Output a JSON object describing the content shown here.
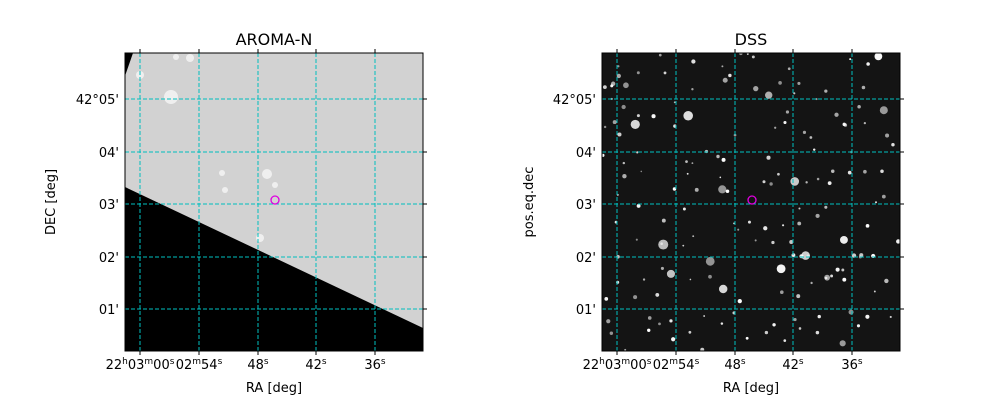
{
  "panels": [
    {
      "title": "AROMA-N",
      "x_label": "RA [deg]",
      "y_label": "DEC [deg]",
      "x_ticks": [
        [
          "22",
          "h",
          "03",
          "m",
          "00",
          "s"
        ],
        [
          "02",
          "m",
          "54",
          "s"
        ],
        [
          "48",
          "s"
        ],
        [
          "42",
          "s"
        ],
        [
          "36",
          "s"
        ]
      ],
      "y_ticks": [
        "42°05'",
        "04'",
        "03'",
        "02'",
        "01'"
      ]
    },
    {
      "title": "DSS",
      "x_label": "RA [deg]",
      "y_label": "pos.eq.dec",
      "x_ticks": [
        [
          "22",
          "h",
          "03",
          "m",
          "00",
          "s"
        ],
        [
          "02",
          "m",
          "54",
          "s"
        ],
        [
          "48",
          "s"
        ],
        [
          "42",
          "s"
        ],
        [
          "36",
          "s"
        ]
      ],
      "y_ticks": [
        "42°05'",
        "04'",
        "03'",
        "02'",
        "01'"
      ]
    }
  ]
}
